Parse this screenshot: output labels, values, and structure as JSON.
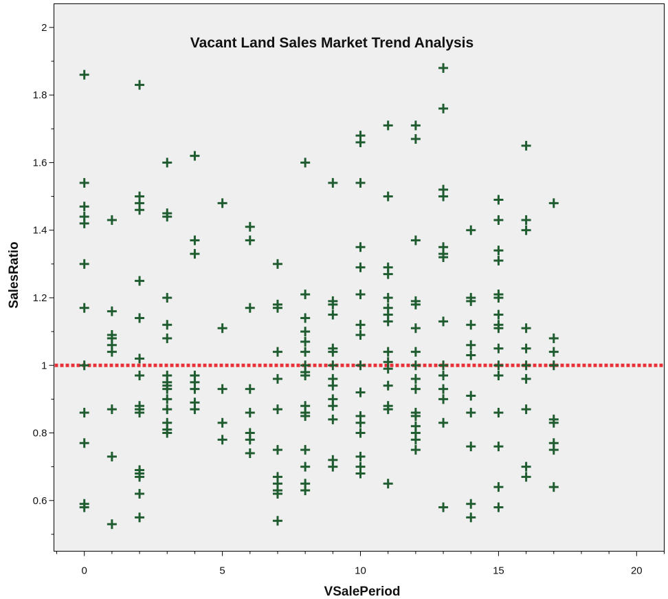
{
  "chart_data": {
    "type": "scatter",
    "title": "Vacant Land Sales Market Trend Analysis",
    "xlabel": "VSalePeriod",
    "ylabel": "SalesRatio",
    "xlim": [
      -1.1,
      21
    ],
    "ylim": [
      0.45,
      2.07
    ],
    "xticks": [
      0,
      5,
      10,
      15,
      20
    ],
    "xtick_labels": [
      "0",
      "5",
      "10",
      "15",
      "20"
    ],
    "yticks": [
      0.6,
      0.8,
      1.0,
      1.2,
      1.4,
      1.6,
      1.8,
      2.0
    ],
    "ytick_labels": [
      "0.6",
      "0.8",
      "1",
      "1.2",
      "1.4",
      "1.6",
      "1.8",
      "2"
    ],
    "reference_line": {
      "y": 1.0,
      "style": "dotted",
      "color": "#e8323a"
    },
    "marker": {
      "shape": "plus",
      "color": "#1f5c30"
    },
    "grid": false,
    "series": [
      {
        "points": [
          [
            0,
            1.86
          ],
          [
            0,
            1.54
          ],
          [
            0,
            1.47
          ],
          [
            0,
            1.44
          ],
          [
            0,
            1.42
          ],
          [
            0,
            1.3
          ],
          [
            0,
            1.17
          ],
          [
            0,
            1.0
          ],
          [
            0,
            0.86
          ],
          [
            0,
            0.77
          ],
          [
            0,
            0.59
          ],
          [
            0,
            0.58
          ],
          [
            1,
            1.43
          ],
          [
            1,
            1.16
          ],
          [
            1,
            1.09
          ],
          [
            1,
            1.08
          ],
          [
            1,
            1.06
          ],
          [
            1,
            1.04
          ],
          [
            1,
            0.87
          ],
          [
            1,
            0.73
          ],
          [
            1,
            0.53
          ],
          [
            2,
            1.83
          ],
          [
            2,
            1.5
          ],
          [
            2,
            1.48
          ],
          [
            2,
            1.46
          ],
          [
            2,
            1.25
          ],
          [
            2,
            1.14
          ],
          [
            2,
            1.02
          ],
          [
            2,
            0.97
          ],
          [
            2,
            0.88
          ],
          [
            2,
            0.87
          ],
          [
            2,
            0.86
          ],
          [
            2,
            0.69
          ],
          [
            2,
            0.68
          ],
          [
            2,
            0.67
          ],
          [
            2,
            0.62
          ],
          [
            2,
            0.55
          ],
          [
            3,
            1.6
          ],
          [
            3,
            1.45
          ],
          [
            3,
            1.44
          ],
          [
            3,
            1.2
          ],
          [
            3,
            1.12
          ],
          [
            3,
            1.08
          ],
          [
            3,
            0.97
          ],
          [
            3,
            0.95
          ],
          [
            3,
            0.94
          ],
          [
            3,
            0.93
          ],
          [
            3,
            0.9
          ],
          [
            3,
            0.87
          ],
          [
            3,
            0.83
          ],
          [
            3,
            0.81
          ],
          [
            3,
            0.8
          ],
          [
            4,
            1.62
          ],
          [
            4,
            1.37
          ],
          [
            4,
            1.33
          ],
          [
            4,
            0.97
          ],
          [
            4,
            0.95
          ],
          [
            4,
            0.93
          ],
          [
            4,
            0.89
          ],
          [
            4,
            0.87
          ],
          [
            5,
            1.48
          ],
          [
            5,
            1.11
          ],
          [
            5,
            0.93
          ],
          [
            5,
            0.83
          ],
          [
            5,
            0.78
          ],
          [
            6,
            1.41
          ],
          [
            6,
            1.37
          ],
          [
            6,
            1.17
          ],
          [
            6,
            0.93
          ],
          [
            6,
            0.86
          ],
          [
            6,
            0.8
          ],
          [
            6,
            0.78
          ],
          [
            6,
            0.74
          ],
          [
            7,
            1.3
          ],
          [
            7,
            1.18
          ],
          [
            7,
            1.17
          ],
          [
            7,
            1.04
          ],
          [
            7,
            0.96
          ],
          [
            7,
            0.87
          ],
          [
            7,
            0.75
          ],
          [
            7,
            0.67
          ],
          [
            7,
            0.65
          ],
          [
            7,
            0.63
          ],
          [
            7,
            0.62
          ],
          [
            7,
            0.54
          ],
          [
            8,
            1.6
          ],
          [
            8,
            1.21
          ],
          [
            8,
            1.14
          ],
          [
            8,
            1.1
          ],
          [
            8,
            1.07
          ],
          [
            8,
            1.04
          ],
          [
            8,
            1.0
          ],
          [
            8,
            0.98
          ],
          [
            8,
            0.97
          ],
          [
            8,
            0.88
          ],
          [
            8,
            0.86
          ],
          [
            8,
            0.85
          ],
          [
            8,
            0.75
          ],
          [
            8,
            0.7
          ],
          [
            8,
            0.65
          ],
          [
            8,
            0.63
          ],
          [
            9,
            1.54
          ],
          [
            9,
            1.19
          ],
          [
            9,
            1.18
          ],
          [
            9,
            1.15
          ],
          [
            9,
            1.05
          ],
          [
            9,
            1.04
          ],
          [
            9,
            1.0
          ],
          [
            9,
            0.96
          ],
          [
            9,
            0.94
          ],
          [
            9,
            0.9
          ],
          [
            9,
            0.88
          ],
          [
            9,
            0.84
          ],
          [
            9,
            0.72
          ],
          [
            9,
            0.7
          ],
          [
            10,
            1.68
          ],
          [
            10,
            1.66
          ],
          [
            10,
            1.54
          ],
          [
            10,
            1.35
          ],
          [
            10,
            1.29
          ],
          [
            10,
            1.21
          ],
          [
            10,
            1.12
          ],
          [
            10,
            1.09
          ],
          [
            10,
            1.0
          ],
          [
            10,
            0.92
          ],
          [
            10,
            0.85
          ],
          [
            10,
            0.83
          ],
          [
            10,
            0.8
          ],
          [
            10,
            0.73
          ],
          [
            10,
            0.7
          ],
          [
            10,
            0.68
          ],
          [
            11,
            1.71
          ],
          [
            11,
            1.5
          ],
          [
            11,
            1.29
          ],
          [
            11,
            1.27
          ],
          [
            11,
            1.2
          ],
          [
            11,
            1.17
          ],
          [
            11,
            1.15
          ],
          [
            11,
            1.13
          ],
          [
            11,
            1.04
          ],
          [
            11,
            1.01
          ],
          [
            11,
            0.99
          ],
          [
            11,
            0.94
          ],
          [
            11,
            0.88
          ],
          [
            11,
            0.87
          ],
          [
            11,
            0.65
          ],
          [
            12,
            1.71
          ],
          [
            12,
            1.67
          ],
          [
            12,
            1.37
          ],
          [
            12,
            1.19
          ],
          [
            12,
            1.18
          ],
          [
            12,
            1.11
          ],
          [
            12,
            1.04
          ],
          [
            12,
            1.0
          ],
          [
            12,
            0.96
          ],
          [
            12,
            0.93
          ],
          [
            12,
            0.86
          ],
          [
            12,
            0.85
          ],
          [
            12,
            0.82
          ],
          [
            12,
            0.8
          ],
          [
            12,
            0.78
          ],
          [
            12,
            0.75
          ],
          [
            13,
            1.88
          ],
          [
            13,
            1.76
          ],
          [
            13,
            1.52
          ],
          [
            13,
            1.5
          ],
          [
            13,
            1.35
          ],
          [
            13,
            1.33
          ],
          [
            13,
            1.32
          ],
          [
            13,
            1.13
          ],
          [
            13,
            1.0
          ],
          [
            13,
            0.97
          ],
          [
            13,
            0.93
          ],
          [
            13,
            0.9
          ],
          [
            13,
            0.83
          ],
          [
            13,
            0.58
          ],
          [
            14,
            1.4
          ],
          [
            14,
            1.2
          ],
          [
            14,
            1.19
          ],
          [
            14,
            1.12
          ],
          [
            14,
            1.06
          ],
          [
            14,
            1.03
          ],
          [
            14,
            0.91
          ],
          [
            14,
            0.86
          ],
          [
            14,
            0.76
          ],
          [
            14,
            0.59
          ],
          [
            14,
            0.55
          ],
          [
            15,
            1.49
          ],
          [
            15,
            1.43
          ],
          [
            15,
            1.34
          ],
          [
            15,
            1.31
          ],
          [
            15,
            1.21
          ],
          [
            15,
            1.2
          ],
          [
            15,
            1.15
          ],
          [
            15,
            1.12
          ],
          [
            15,
            1.11
          ],
          [
            15,
            1.05
          ],
          [
            15,
            1.0
          ],
          [
            15,
            0.97
          ],
          [
            15,
            0.86
          ],
          [
            15,
            0.76
          ],
          [
            15,
            0.64
          ],
          [
            15,
            0.58
          ],
          [
            16,
            1.65
          ],
          [
            16,
            1.43
          ],
          [
            16,
            1.4
          ],
          [
            16,
            1.11
          ],
          [
            16,
            1.05
          ],
          [
            16,
            1.0
          ],
          [
            16,
            0.96
          ],
          [
            16,
            0.87
          ],
          [
            16,
            0.7
          ],
          [
            16,
            0.67
          ],
          [
            17,
            1.48
          ],
          [
            17,
            1.08
          ],
          [
            17,
            1.04
          ],
          [
            17,
            1.0
          ],
          [
            17,
            0.84
          ],
          [
            17,
            0.83
          ],
          [
            17,
            0.77
          ],
          [
            17,
            0.75
          ],
          [
            17,
            0.64
          ]
        ]
      }
    ]
  }
}
